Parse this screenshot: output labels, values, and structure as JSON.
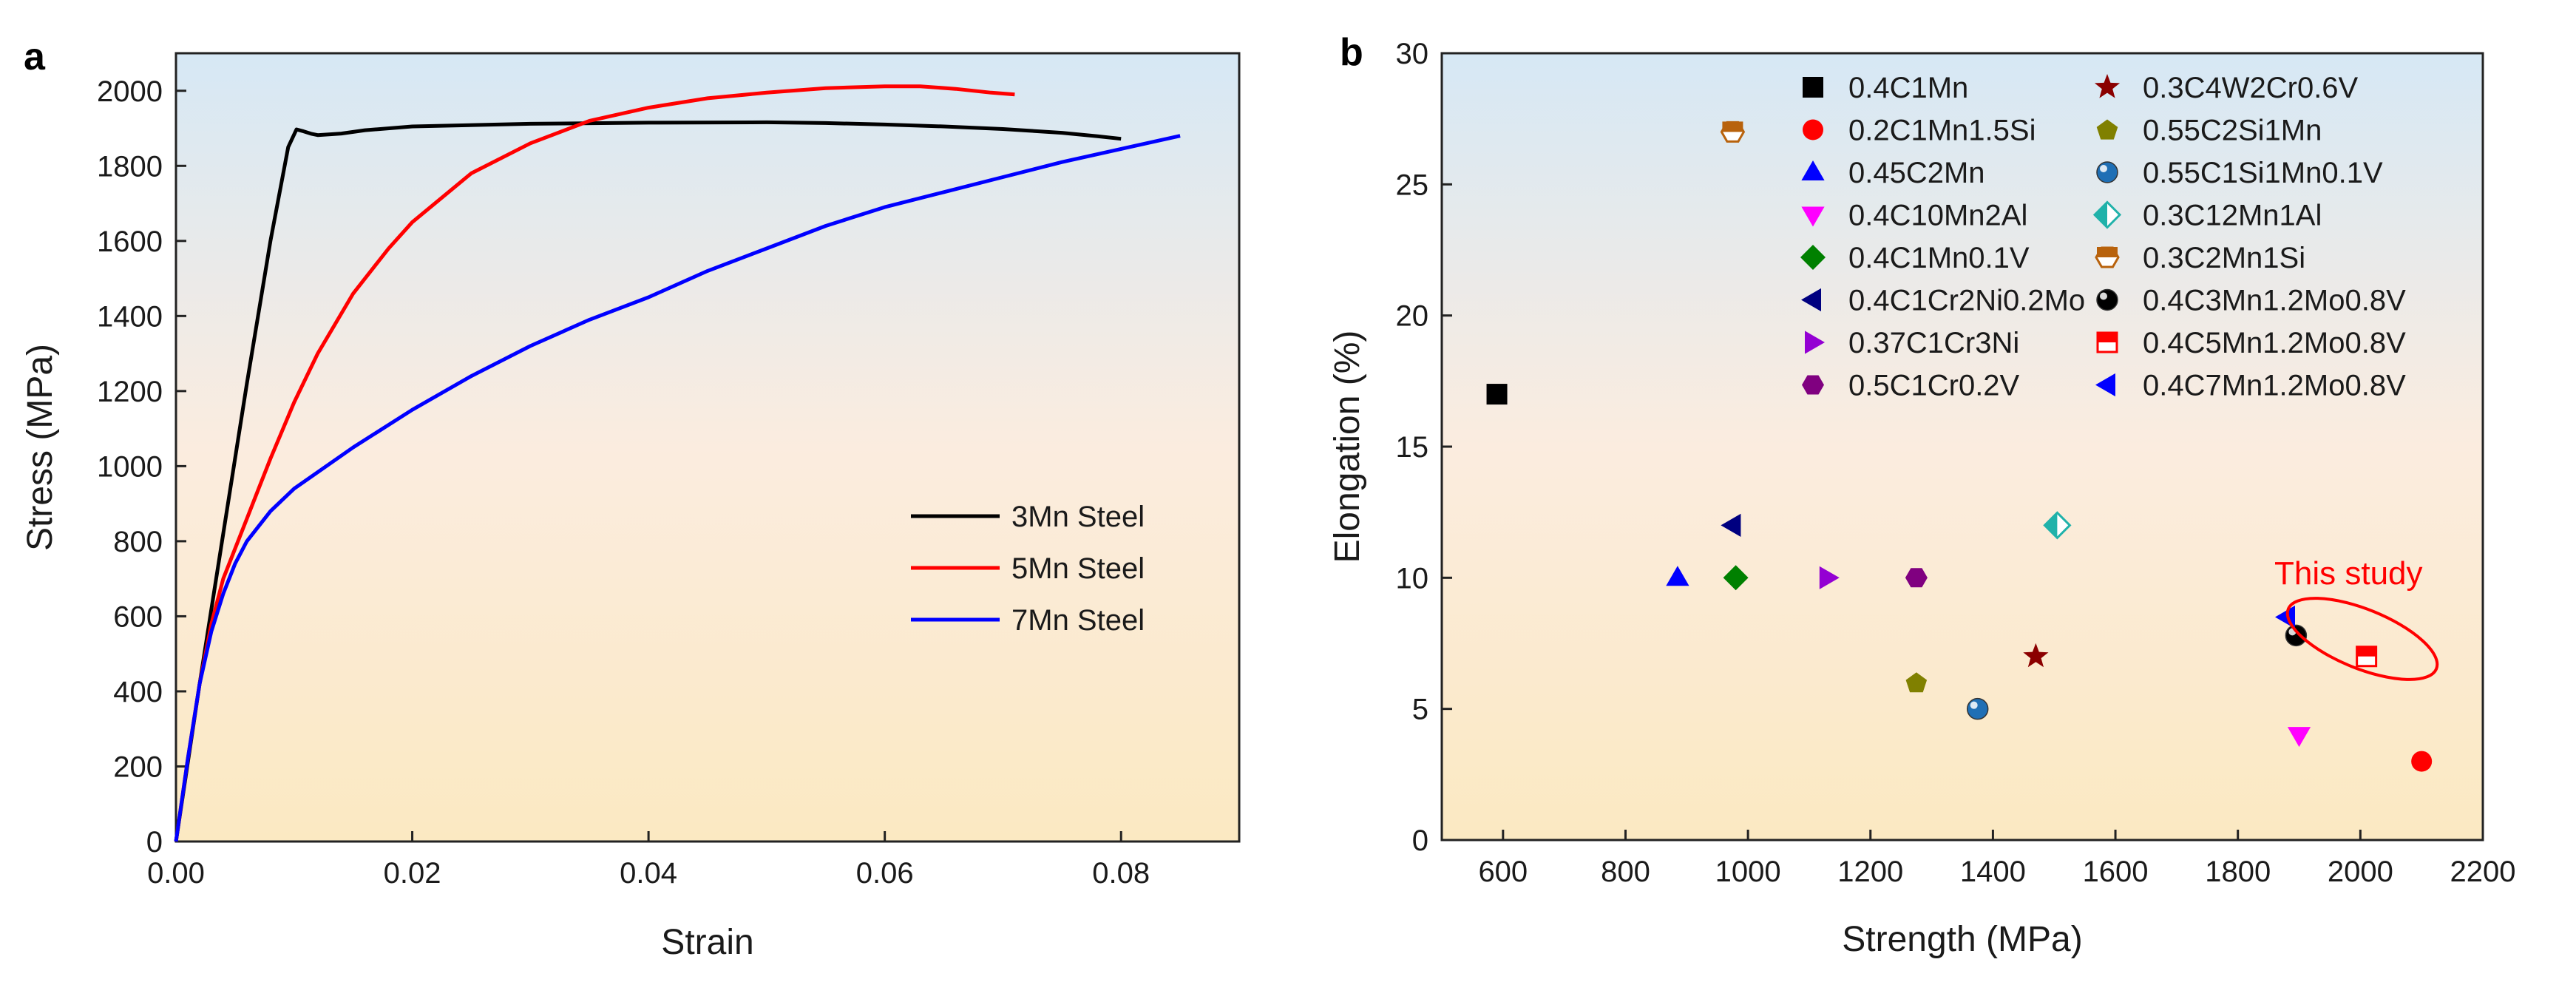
{
  "chart_data": [
    {
      "type": "line",
      "panel": "a",
      "title": "",
      "xlabel": "Strain",
      "ylabel": "Stress (MPa)",
      "xlim": [
        0,
        0.09
      ],
      "ylim": [
        0,
        2100
      ],
      "xticks": [
        "0.00",
        "0.02",
        "0.04",
        "0.06",
        "0.08"
      ],
      "xtick_values": [
        0,
        0.02,
        0.04,
        0.06,
        0.08
      ],
      "yticks": [
        "0",
        "200",
        "400",
        "600",
        "800",
        "1000",
        "1200",
        "1400",
        "1600",
        "1800",
        "2000"
      ],
      "ytick_values": [
        0,
        200,
        400,
        600,
        800,
        1000,
        1200,
        1400,
        1600,
        1800,
        2000
      ],
      "legend_position": "center-right",
      "series": [
        {
          "name": "3Mn Steel",
          "color": "#000000",
          "x": [
            0,
            0.002,
            0.004,
            0.006,
            0.008,
            0.0095,
            0.0102,
            0.0108,
            0.0115,
            0.012,
            0.014,
            0.016,
            0.02,
            0.03,
            0.04,
            0.05,
            0.055,
            0.06,
            0.065,
            0.07,
            0.075,
            0.078,
            0.08
          ],
          "y": [
            0,
            420,
            820,
            1220,
            1600,
            1850,
            1897,
            1892,
            1885,
            1882,
            1886,
            1895,
            1905,
            1912,
            1915,
            1916,
            1914,
            1910,
            1905,
            1898,
            1888,
            1879,
            1872
          ]
        },
        {
          "name": "5Mn Steel",
          "color": "#ff0000",
          "x": [
            0,
            0.001,
            0.002,
            0.003,
            0.004,
            0.005,
            0.006,
            0.007,
            0.008,
            0.01,
            0.012,
            0.015,
            0.018,
            0.02,
            0.025,
            0.03,
            0.035,
            0.04,
            0.045,
            0.05,
            0.055,
            0.06,
            0.063,
            0.066,
            0.069,
            0.071
          ],
          "y": [
            0,
            220,
            420,
            580,
            700,
            780,
            860,
            940,
            1020,
            1170,
            1300,
            1460,
            1580,
            1650,
            1780,
            1860,
            1920,
            1955,
            1980,
            1995,
            2007,
            2012,
            2012,
            2005,
            1995,
            1990
          ]
        },
        {
          "name": "7Mn Steel",
          "color": "#0000ff",
          "x": [
            0,
            0.001,
            0.002,
            0.003,
            0.004,
            0.005,
            0.006,
            0.008,
            0.01,
            0.015,
            0.02,
            0.025,
            0.03,
            0.035,
            0.04,
            0.045,
            0.05,
            0.055,
            0.06,
            0.065,
            0.07,
            0.075,
            0.08,
            0.085
          ],
          "y": [
            0,
            220,
            420,
            560,
            660,
            740,
            800,
            880,
            940,
            1050,
            1150,
            1240,
            1320,
            1390,
            1450,
            1520,
            1580,
            1640,
            1690,
            1730,
            1770,
            1810,
            1845,
            1880
          ]
        }
      ]
    },
    {
      "type": "scatter",
      "panel": "b",
      "title": "",
      "xlabel": "Strength (MPa)",
      "ylabel": "Elongation (%)",
      "xlim": [
        500,
        2200
      ],
      "ylim": [
        0,
        30
      ],
      "xticks": [
        "600",
        "800",
        "1000",
        "1200",
        "1400",
        "1600",
        "1800",
        "2000",
        "2200"
      ],
      "xtick_values": [
        600,
        800,
        1000,
        1200,
        1400,
        1600,
        1800,
        2000,
        2200
      ],
      "yticks": [
        "0",
        "5",
        "10",
        "15",
        "20",
        "25",
        "30"
      ],
      "ytick_values": [
        0,
        5,
        10,
        15,
        20,
        25,
        30
      ],
      "annotation": {
        "text": "This study",
        "color": "#ff0000"
      },
      "series": [
        {
          "name": "0.4C1Mn",
          "marker": "square",
          "color": "#000000",
          "x": 590,
          "y": 17
        },
        {
          "name": "0.2C1Mn1.5Si",
          "marker": "circle",
          "color": "#ff0000",
          "x": 2100,
          "y": 3
        },
        {
          "name": "0.45C2Mn",
          "marker": "triangle-up",
          "color": "#0000ff",
          "x": 885,
          "y": 10
        },
        {
          "name": "0.4C10Mn2Al",
          "marker": "triangle-down",
          "color": "#ff00ff",
          "x": 1900,
          "y": 4
        },
        {
          "name": "0.4C1Mn0.1V",
          "marker": "diamond",
          "color": "#008000",
          "x": 980,
          "y": 10
        },
        {
          "name": "0.4C1Cr2Ni0.2Mo",
          "marker": "triangle-left",
          "color": "#000080",
          "x": 975,
          "y": 12
        },
        {
          "name": "0.37C1Cr3Ni",
          "marker": "triangle-right",
          "color": "#9400d3",
          "x": 1130,
          "y": 10
        },
        {
          "name": "0.5C1Cr0.2V",
          "marker": "hexagon",
          "color": "#800080",
          "x": 1275,
          "y": 10
        },
        {
          "name": "0.3C4W2Cr0.6V",
          "marker": "star",
          "color": "#8b0000",
          "x": 1470,
          "y": 7
        },
        {
          "name": "0.55C2Si1Mn",
          "marker": "pentagon",
          "color": "#808000",
          "x": 1275,
          "y": 6
        },
        {
          "name": "0.55C1Si1Mn0.1V",
          "marker": "sphere",
          "color": "#1f6fb5",
          "x": 1375,
          "y": 5
        },
        {
          "name": "0.3C12Mn1Al",
          "marker": "half-diamond",
          "color": "#20b2aa",
          "x": 1505,
          "y": 12
        },
        {
          "name": "0.3C2Mn1Si",
          "marker": "half-hexagon",
          "color": "#b8620c",
          "x": 975,
          "y": 27
        },
        {
          "name": "0.4C3Mn1.2Mo0.8V",
          "marker": "sphere",
          "color": "#000000",
          "x": 1895,
          "y": 7.8
        },
        {
          "name": "0.4C5Mn1.2Mo0.8V",
          "marker": "half-square",
          "color": "#ff0000",
          "x": 2010,
          "y": 7
        },
        {
          "name": "0.4C7Mn1.2Mo0.8V",
          "marker": "triangle-left",
          "color": "#0000ff",
          "x": 1880,
          "y": 8.5
        }
      ]
    }
  ]
}
